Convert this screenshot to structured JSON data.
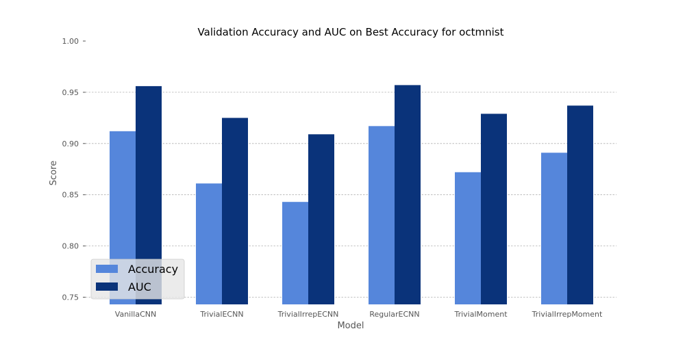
{
  "chart_data": {
    "type": "bar",
    "title": "Validation Accuracy and AUC on Best Accuracy for octmnist",
    "xlabel": "Model",
    "ylabel": "Score",
    "ylim": [
      0.743,
      1.0
    ],
    "yticks": [
      "0.75",
      "0.80",
      "0.85",
      "0.90",
      "0.95",
      "1.00"
    ],
    "ytick_values": [
      0.75,
      0.8,
      0.85,
      0.9,
      0.95,
      1.0
    ],
    "grid": "horizontal dashed",
    "legend_position": "lower-left",
    "categories": [
      "VanillaCNN",
      "TrivialECNN",
      "TrivialIrrepECNN",
      "RegularECNN",
      "TrivialMoment",
      "TrivialIrrepMoment"
    ],
    "series": [
      {
        "name": "Accuracy",
        "color": "#5586db",
        "values": [
          0.912,
          0.861,
          0.843,
          0.917,
          0.872,
          0.891
        ]
      },
      {
        "name": "AUC",
        "color": "#0a337a",
        "values": [
          0.956,
          0.925,
          0.909,
          0.957,
          0.929,
          0.937
        ]
      }
    ]
  }
}
